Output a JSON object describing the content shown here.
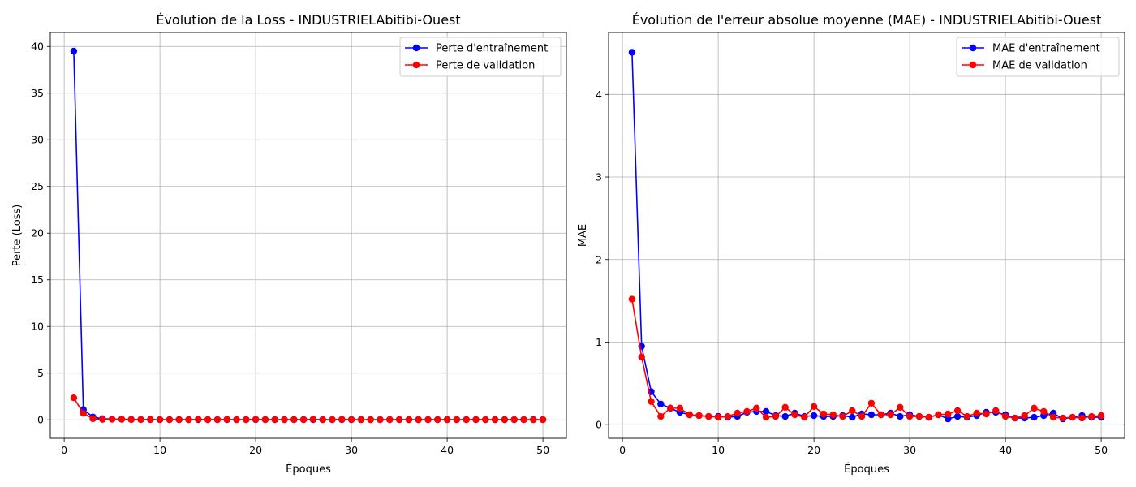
{
  "charts": [
    {
      "type": "line",
      "title": "Évolution de la Loss - INDUSTRIELAbitibi-Ouest",
      "xlabel": "Époques",
      "ylabel": "Perte (Loss)",
      "xlim": [
        -1.45,
        52.45
      ],
      "ylim": [
        -1.98,
        41.5
      ],
      "xticks": [
        0,
        10,
        20,
        30,
        40,
        50
      ],
      "yticks": [
        0,
        5,
        10,
        15,
        20,
        25,
        30,
        35,
        40
      ],
      "grid": true,
      "legend_position": "top-right",
      "x": [
        1,
        2,
        3,
        4,
        5,
        6,
        7,
        8,
        9,
        10,
        11,
        12,
        13,
        14,
        15,
        16,
        17,
        18,
        19,
        20,
        21,
        22,
        23,
        24,
        25,
        26,
        27,
        28,
        29,
        30,
        31,
        32,
        33,
        34,
        35,
        36,
        37,
        38,
        39,
        40,
        41,
        42,
        43,
        44,
        45,
        46,
        47,
        48,
        49,
        50
      ],
      "series": [
        {
          "name": "Perte d'entraînement",
          "color": "#0000ff",
          "values": [
            39.5,
            1.1,
            0.3,
            0.12,
            0.08,
            0.06,
            0.04,
            0.03,
            0.03,
            0.02,
            0.02,
            0.02,
            0.02,
            0.02,
            0.02,
            0.02,
            0.02,
            0.02,
            0.02,
            0.02,
            0.02,
            0.02,
            0.02,
            0.02,
            0.02,
            0.02,
            0.02,
            0.02,
            0.02,
            0.02,
            0.02,
            0.02,
            0.02,
            0.02,
            0.02,
            0.02,
            0.02,
            0.02,
            0.02,
            0.02,
            0.02,
            0.02,
            0.02,
            0.02,
            0.02,
            0.02,
            0.02,
            0.02,
            0.02,
            0.02
          ]
        },
        {
          "name": "Perte de validation",
          "color": "#ff0000",
          "values": [
            2.35,
            0.7,
            0.12,
            0.05,
            0.06,
            0.07,
            0.03,
            0.03,
            0.03,
            0.02,
            0.02,
            0.02,
            0.02,
            0.05,
            0.02,
            0.02,
            0.05,
            0.02,
            0.02,
            0.05,
            0.02,
            0.02,
            0.02,
            0.03,
            0.02,
            0.06,
            0.02,
            0.02,
            0.05,
            0.02,
            0.02,
            0.02,
            0.02,
            0.02,
            0.03,
            0.02,
            0.02,
            0.02,
            0.02,
            0.02,
            0.02,
            0.02,
            0.03,
            0.02,
            0.02,
            0.02,
            0.02,
            0.02,
            0.02,
            0.02
          ]
        }
      ]
    },
    {
      "type": "line",
      "title": "Évolution de l'erreur absolue moyenne (MAE) - INDUSTRIELAbitibi-Ouest",
      "xlabel": "Époques",
      "ylabel": "MAE",
      "xlim": [
        -1.45,
        52.45
      ],
      "ylim": [
        -0.165,
        4.75
      ],
      "xticks": [
        0,
        10,
        20,
        30,
        40,
        50
      ],
      "yticks": [
        0,
        1,
        2,
        3,
        4
      ],
      "grid": true,
      "legend_position": "top-right",
      "x": [
        1,
        2,
        3,
        4,
        5,
        6,
        7,
        8,
        9,
        10,
        11,
        12,
        13,
        14,
        15,
        16,
        17,
        18,
        19,
        20,
        21,
        22,
        23,
        24,
        25,
        26,
        27,
        28,
        29,
        30,
        31,
        32,
        33,
        34,
        35,
        36,
        37,
        38,
        39,
        40,
        41,
        42,
        43,
        44,
        45,
        46,
        47,
        48,
        49,
        50
      ],
      "series": [
        {
          "name": "MAE d'entraînement",
          "color": "#0000ff",
          "values": [
            4.51,
            0.95,
            0.4,
            0.25,
            0.2,
            0.15,
            0.12,
            0.11,
            0.1,
            0.1,
            0.09,
            0.1,
            0.15,
            0.16,
            0.16,
            0.11,
            0.1,
            0.14,
            0.1,
            0.11,
            0.1,
            0.1,
            0.11,
            0.09,
            0.13,
            0.12,
            0.12,
            0.14,
            0.1,
            0.12,
            0.1,
            0.09,
            0.12,
            0.07,
            0.1,
            0.09,
            0.11,
            0.15,
            0.15,
            0.12,
            0.08,
            0.08,
            0.09,
            0.11,
            0.14,
            0.07,
            0.09,
            0.11,
            0.09,
            0.09
          ]
        },
        {
          "name": "MAE de validation",
          "color": "#ff0000",
          "values": [
            1.52,
            0.82,
            0.28,
            0.1,
            0.2,
            0.2,
            0.12,
            0.11,
            0.1,
            0.09,
            0.1,
            0.14,
            0.16,
            0.2,
            0.09,
            0.1,
            0.21,
            0.12,
            0.09,
            0.22,
            0.13,
            0.12,
            0.1,
            0.17,
            0.1,
            0.26,
            0.12,
            0.12,
            0.21,
            0.1,
            0.1,
            0.09,
            0.12,
            0.13,
            0.17,
            0.1,
            0.14,
            0.13,
            0.17,
            0.1,
            0.08,
            0.11,
            0.2,
            0.16,
            0.09,
            0.08,
            0.09,
            0.08,
            0.1,
            0.11
          ]
        }
      ]
    }
  ]
}
